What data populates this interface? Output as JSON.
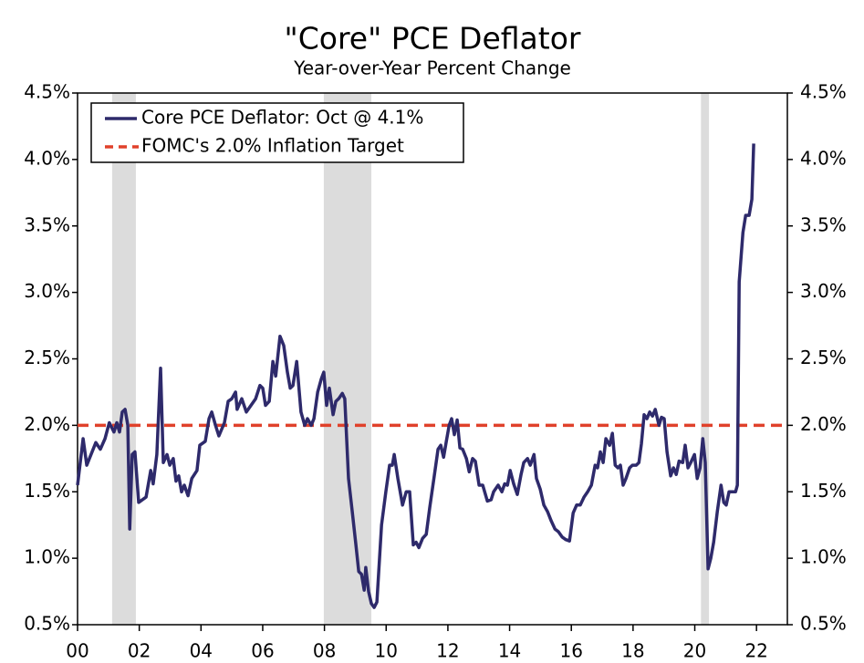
{
  "chart_data": {
    "type": "line",
    "title": "\"Core\" PCE Deflator",
    "subtitle": "Year-over-Year Percent Change",
    "x": [
      2000.0,
      2000.18,
      2000.3,
      2000.59,
      2000.74,
      2000.89,
      2001.03,
      2001.18,
      2001.27,
      2001.36,
      2001.45,
      2001.54,
      2001.63,
      2001.69,
      2001.77,
      2001.86,
      2001.98,
      2002.22,
      2002.37,
      2002.45,
      2002.57,
      2002.69,
      2002.78,
      2002.9,
      2002.99,
      2003.1,
      2003.19,
      2003.28,
      2003.37,
      2003.46,
      2003.58,
      2003.7,
      2003.87,
      2003.96,
      2004.14,
      2004.26,
      2004.35,
      2004.47,
      2004.58,
      2004.76,
      2004.88,
      2005.0,
      2005.12,
      2005.17,
      2005.32,
      2005.47,
      2005.62,
      2005.77,
      2005.91,
      2006.0,
      2006.09,
      2006.21,
      2006.33,
      2006.42,
      2006.56,
      2006.68,
      2006.8,
      2006.89,
      2006.98,
      2007.1,
      2007.24,
      2007.36,
      2007.45,
      2007.57,
      2007.66,
      2007.78,
      2007.9,
      2007.98,
      2008.07,
      2008.16,
      2008.28,
      2008.37,
      2008.46,
      2008.58,
      2008.66,
      2008.78,
      2008.9,
      2009.02,
      2009.11,
      2009.2,
      2009.29,
      2009.34,
      2009.43,
      2009.52,
      2009.61,
      2009.7,
      2009.85,
      2009.99,
      2010.11,
      2010.2,
      2010.26,
      2010.38,
      2010.53,
      2010.65,
      2010.76,
      2010.88,
      2010.97,
      2011.06,
      2011.18,
      2011.3,
      2011.41,
      2011.56,
      2011.68,
      2011.77,
      2011.86,
      2011.95,
      2012.04,
      2012.12,
      2012.21,
      2012.3,
      2012.39,
      2012.48,
      2012.6,
      2012.69,
      2012.8,
      2012.89,
      2013.01,
      2013.13,
      2013.28,
      2013.4,
      2013.48,
      2013.63,
      2013.75,
      2013.84,
      2013.93,
      2014.02,
      2014.13,
      2014.25,
      2014.37,
      2014.46,
      2014.58,
      2014.67,
      2014.79,
      2014.87,
      2014.99,
      2015.11,
      2015.23,
      2015.35,
      2015.47,
      2015.58,
      2015.7,
      2015.82,
      2015.94,
      2016.06,
      2016.17,
      2016.29,
      2016.41,
      2016.53,
      2016.65,
      2016.77,
      2016.85,
      2016.94,
      2017.03,
      2017.12,
      2017.24,
      2017.33,
      2017.42,
      2017.51,
      2017.59,
      2017.68,
      2017.77,
      2017.89,
      2017.98,
      2018.1,
      2018.19,
      2018.27,
      2018.36,
      2018.45,
      2018.54,
      2018.63,
      2018.72,
      2018.84,
      2018.92,
      2019.01,
      2019.1,
      2019.22,
      2019.31,
      2019.4,
      2019.49,
      2019.61,
      2019.69,
      2019.78,
      2019.87,
      2019.99,
      2020.08,
      2020.17,
      2020.26,
      2020.34,
      2020.43,
      2020.52,
      2020.61,
      2020.73,
      2020.85,
      2020.94,
      2021.02,
      2021.11,
      2021.23,
      2021.32,
      2021.38,
      2021.44,
      2021.56,
      2021.65,
      2021.76,
      2021.85,
      2021.91
    ],
    "series": [
      {
        "name": "Core PCE Deflator: Oct @ 4.1%",
        "color": "#2e2a6b",
        "values": [
          1.55,
          1.9,
          1.7,
          1.87,
          1.82,
          1.9,
          2.02,
          1.95,
          2.02,
          1.95,
          2.1,
          2.12,
          2.0,
          1.22,
          1.78,
          1.8,
          1.42,
          1.46,
          1.66,
          1.56,
          1.78,
          2.43,
          1.72,
          1.78,
          1.7,
          1.75,
          1.58,
          1.62,
          1.5,
          1.55,
          1.47,
          1.6,
          1.66,
          1.85,
          1.88,
          2.05,
          2.1,
          2.0,
          1.92,
          2.02,
          2.18,
          2.2,
          2.25,
          2.12,
          2.2,
          2.1,
          2.15,
          2.2,
          2.3,
          2.28,
          2.15,
          2.18,
          2.48,
          2.37,
          2.67,
          2.6,
          2.4,
          2.28,
          2.3,
          2.48,
          2.1,
          2.0,
          2.05,
          2.0,
          2.05,
          2.25,
          2.35,
          2.4,
          2.15,
          2.28,
          2.08,
          2.18,
          2.2,
          2.24,
          2.2,
          1.6,
          1.35,
          1.1,
          0.9,
          0.88,
          0.76,
          0.93,
          0.75,
          0.66,
          0.63,
          0.67,
          1.25,
          1.5,
          1.7,
          1.7,
          1.78,
          1.6,
          1.4,
          1.5,
          1.5,
          1.1,
          1.12,
          1.08,
          1.15,
          1.18,
          1.38,
          1.62,
          1.82,
          1.85,
          1.76,
          1.88,
          2.0,
          2.05,
          1.93,
          2.04,
          1.83,
          1.82,
          1.75,
          1.65,
          1.75,
          1.73,
          1.55,
          1.55,
          1.43,
          1.44,
          1.5,
          1.55,
          1.5,
          1.56,
          1.55,
          1.66,
          1.56,
          1.48,
          1.63,
          1.72,
          1.75,
          1.7,
          1.78,
          1.6,
          1.52,
          1.4,
          1.35,
          1.28,
          1.22,
          1.2,
          1.16,
          1.14,
          1.13,
          1.34,
          1.4,
          1.4,
          1.46,
          1.5,
          1.55,
          1.7,
          1.68,
          1.8,
          1.72,
          1.9,
          1.85,
          1.94,
          1.7,
          1.68,
          1.7,
          1.55,
          1.6,
          1.68,
          1.7,
          1.7,
          1.72,
          1.86,
          2.08,
          2.05,
          2.1,
          2.07,
          2.12,
          2.0,
          2.06,
          2.05,
          1.8,
          1.62,
          1.68,
          1.63,
          1.73,
          1.72,
          1.85,
          1.68,
          1.72,
          1.78,
          1.6,
          1.68,
          1.9,
          1.72,
          0.92,
          1.0,
          1.12,
          1.35,
          1.55,
          1.42,
          1.4,
          1.5,
          1.5,
          1.5,
          1.55,
          3.08,
          3.45,
          3.58,
          3.58,
          3.7,
          4.12
        ]
      }
    ],
    "reference_lines": [
      {
        "name": "FOMC's 2.0% Inflation Target",
        "value": 2.0,
        "color": "#e0412b"
      }
    ],
    "recessions": [
      [
        2001.12,
        2001.89
      ],
      [
        2007.98,
        2009.52
      ],
      [
        2020.2,
        2020.46
      ]
    ],
    "xlim": [
      2000,
      2023
    ],
    "xticks": [
      {
        "value": 2000,
        "label": "00"
      },
      {
        "value": 2002,
        "label": "02"
      },
      {
        "value": 2004,
        "label": "04"
      },
      {
        "value": 2006,
        "label": "06"
      },
      {
        "value": 2008,
        "label": "08"
      },
      {
        "value": 2010,
        "label": "10"
      },
      {
        "value": 2012,
        "label": "12"
      },
      {
        "value": 2014,
        "label": "14"
      },
      {
        "value": 2016,
        "label": "16"
      },
      {
        "value": 2018,
        "label": "18"
      },
      {
        "value": 2020,
        "label": "20"
      },
      {
        "value": 2022,
        "label": "22"
      }
    ],
    "ylim": [
      0.5,
      4.5
    ],
    "yticks": [
      {
        "value": 0.5,
        "label": "0.5%"
      },
      {
        "value": 1.0,
        "label": "1.0%"
      },
      {
        "value": 1.5,
        "label": "1.5%"
      },
      {
        "value": 2.0,
        "label": "2.0%"
      },
      {
        "value": 2.5,
        "label": "2.5%"
      },
      {
        "value": 3.0,
        "label": "3.0%"
      },
      {
        "value": 3.5,
        "label": "3.5%"
      },
      {
        "value": 4.0,
        "label": "4.0%"
      },
      {
        "value": 4.5,
        "label": "4.5%"
      }
    ],
    "legend": "upper left"
  }
}
